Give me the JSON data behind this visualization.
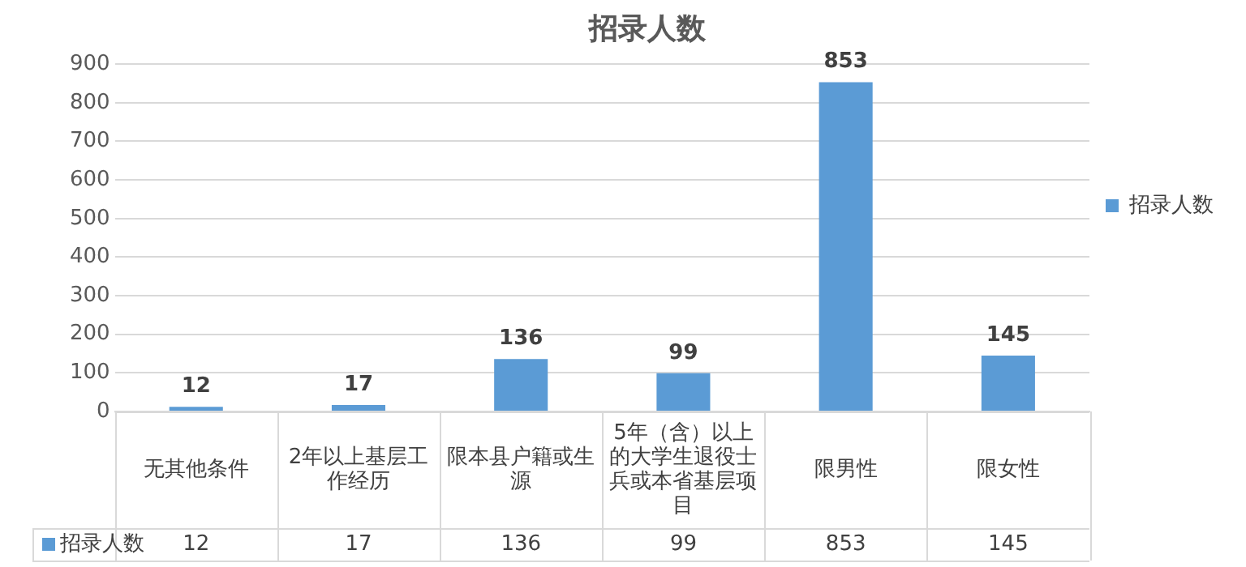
{
  "chart_data": {
    "type": "bar",
    "title": "招录人数",
    "categories": [
      "无其他条件",
      "2年以上基层工作经历",
      "限本县户籍或生源",
      "5年（含）以上的大学生退役士兵或本省基层项目",
      "限男性",
      "限女性"
    ],
    "series": [
      {
        "name": "招录人数",
        "color": "#5b9bd5",
        "values": [
          12,
          17,
          136,
          99,
          853,
          145
        ],
        "value_labels": [
          "12",
          "17",
          "136",
          "99",
          "853",
          "145"
        ]
      }
    ],
    "ylim": [
      0,
      900
    ],
    "yticks": [
      0,
      100,
      200,
      300,
      400,
      500,
      600,
      700,
      800,
      900
    ],
    "grid": "y",
    "legend": "right",
    "annotations": [
      "12",
      "17",
      "136",
      "99",
      "853",
      "145"
    ]
  }
}
